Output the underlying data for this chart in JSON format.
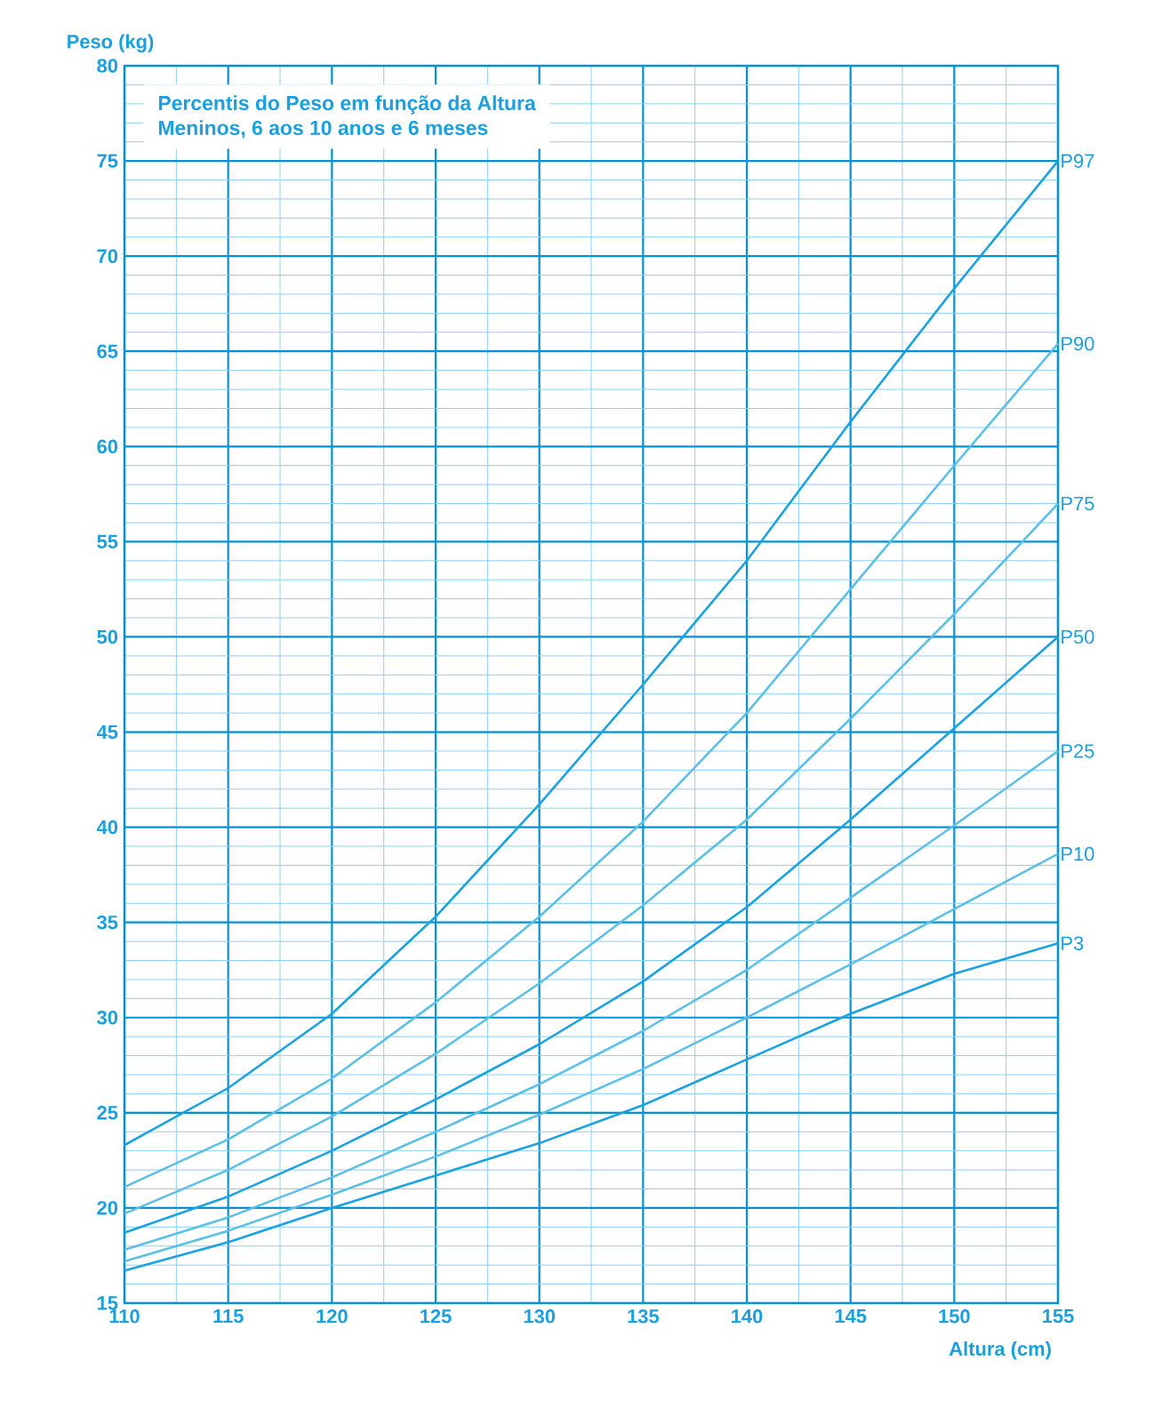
{
  "chart_data": {
    "type": "line",
    "title": "Percentis do Peso em função da Altura",
    "subtitle": "Meninos, 6 aos 10 anos e 6 meses",
    "xlabel": "Altura (cm)",
    "ylabel": "Peso (kg)",
    "x": [
      110,
      115,
      120,
      125,
      130,
      135,
      140,
      145,
      150,
      155
    ],
    "series": [
      {
        "name": "P97",
        "color": "#1aa3e0",
        "values": [
          23.3,
          26.3,
          30.2,
          35.3,
          41.2,
          47.5,
          54.0,
          61.3,
          68.3,
          75.0
        ]
      },
      {
        "name": "P90",
        "color": "#5cc0e6",
        "values": [
          21.1,
          23.6,
          26.8,
          30.8,
          35.3,
          40.3,
          46.0,
          52.5,
          59.0,
          65.4
        ]
      },
      {
        "name": "P75",
        "color": "#5cc0e6",
        "values": [
          19.7,
          22.0,
          24.8,
          28.1,
          31.8,
          35.9,
          40.4,
          45.7,
          51.2,
          57.0
        ]
      },
      {
        "name": "P50",
        "color": "#1aa3e0",
        "values": [
          18.7,
          20.6,
          23.0,
          25.7,
          28.6,
          31.9,
          35.8,
          40.4,
          45.2,
          50.0
        ]
      },
      {
        "name": "P25",
        "color": "#5cc0e6",
        "values": [
          17.8,
          19.5,
          21.6,
          24.0,
          26.5,
          29.3,
          32.5,
          36.3,
          40.1,
          44.0
        ]
      },
      {
        "name": "P10",
        "color": "#5cc0e6",
        "values": [
          17.2,
          18.8,
          20.7,
          22.7,
          24.9,
          27.3,
          30.0,
          32.8,
          35.7,
          38.6
        ]
      },
      {
        "name": "P3",
        "color": "#1aa3e0",
        "values": [
          16.7,
          18.2,
          20.0,
          21.7,
          23.4,
          25.4,
          27.8,
          30.2,
          32.3,
          33.9
        ]
      }
    ],
    "xlim": [
      110,
      155
    ],
    "xticks": [
      110,
      {
        "value": 112.5,
        "label": null
      },
      115,
      {
        "value": 117.5,
        "label": null
      },
      120,
      {
        "value": 122.5,
        "label": null
      },
      125,
      {
        "value": 127.5,
        "label": null
      },
      130,
      {
        "value": 132.5,
        "label": null
      },
      135,
      {
        "value": 137.5,
        "label": null
      },
      140,
      {
        "value": 142.5,
        "label": null
      },
      145,
      {
        "value": 147.5,
        "label": null
      },
      150,
      {
        "value": 152.5,
        "label": null
      },
      155
    ],
    "ylim": [
      15,
      80
    ],
    "yticks": [
      15,
      {
        "value": 16,
        "label": null
      },
      {
        "value": 17,
        "label": null
      },
      {
        "value": 18,
        "label": null
      },
      {
        "value": 19,
        "label": null
      },
      20,
      {
        "value": 21,
        "label": null
      },
      {
        "value": 22,
        "label": null
      },
      {
        "value": 23,
        "label": null
      },
      {
        "value": 24,
        "label": null
      },
      25,
      {
        "value": 26,
        "label": null
      },
      {
        "value": 27,
        "label": null
      },
      {
        "value": 28,
        "label": null
      },
      {
        "value": 29,
        "label": null
      },
      30,
      {
        "value": 31,
        "label": null
      },
      {
        "value": 32,
        "label": null
      },
      {
        "value": 33,
        "label": null
      },
      {
        "value": 34,
        "label": null
      },
      35,
      {
        "value": 36,
        "label": null
      },
      {
        "value": 37,
        "label": null
      },
      {
        "value": 38,
        "label": null
      },
      {
        "value": 39,
        "label": null
      },
      40,
      {
        "value": 41,
        "label": null
      },
      {
        "value": 42,
        "label": null
      },
      {
        "value": 43,
        "label": null
      },
      {
        "value": 44,
        "label": null
      },
      45,
      {
        "value": 46,
        "label": null
      },
      {
        "value": 47,
        "label": null
      },
      {
        "value": 48,
        "label": null
      },
      {
        "value": 49,
        "label": null
      },
      50,
      {
        "value": 51,
        "label": null
      },
      {
        "value": 52,
        "label": null
      },
      {
        "value": 53,
        "label": null
      },
      {
        "value": 54,
        "label": null
      },
      55,
      {
        "value": 56,
        "label": null
      },
      {
        "value": 57,
        "label": null
      },
      {
        "value": 58,
        "label": null
      },
      {
        "value": 59,
        "label": null
      },
      60,
      {
        "value": 61,
        "label": null
      },
      {
        "value": 62,
        "label": null
      },
      {
        "value": 63,
        "label": null
      },
      {
        "value": 64,
        "label": null
      },
      65,
      {
        "value": 66,
        "label": null
      },
      {
        "value": 67,
        "label": null
      },
      {
        "value": 68,
        "label": null
      },
      {
        "value": 69,
        "label": null
      },
      70,
      {
        "value": 71,
        "label": null
      },
      {
        "value": 72,
        "label": null
      },
      {
        "value": 73,
        "label": null
      },
      {
        "value": 74,
        "label": null
      },
      75,
      {
        "value": 76,
        "label": null
      },
      {
        "value": 77,
        "label": null
      },
      {
        "value": 78,
        "label": null
      },
      {
        "value": 79,
        "label": null
      },
      80
    ],
    "grid": true,
    "legend": false,
    "marker": "none",
    "line_style": "solid"
  }
}
